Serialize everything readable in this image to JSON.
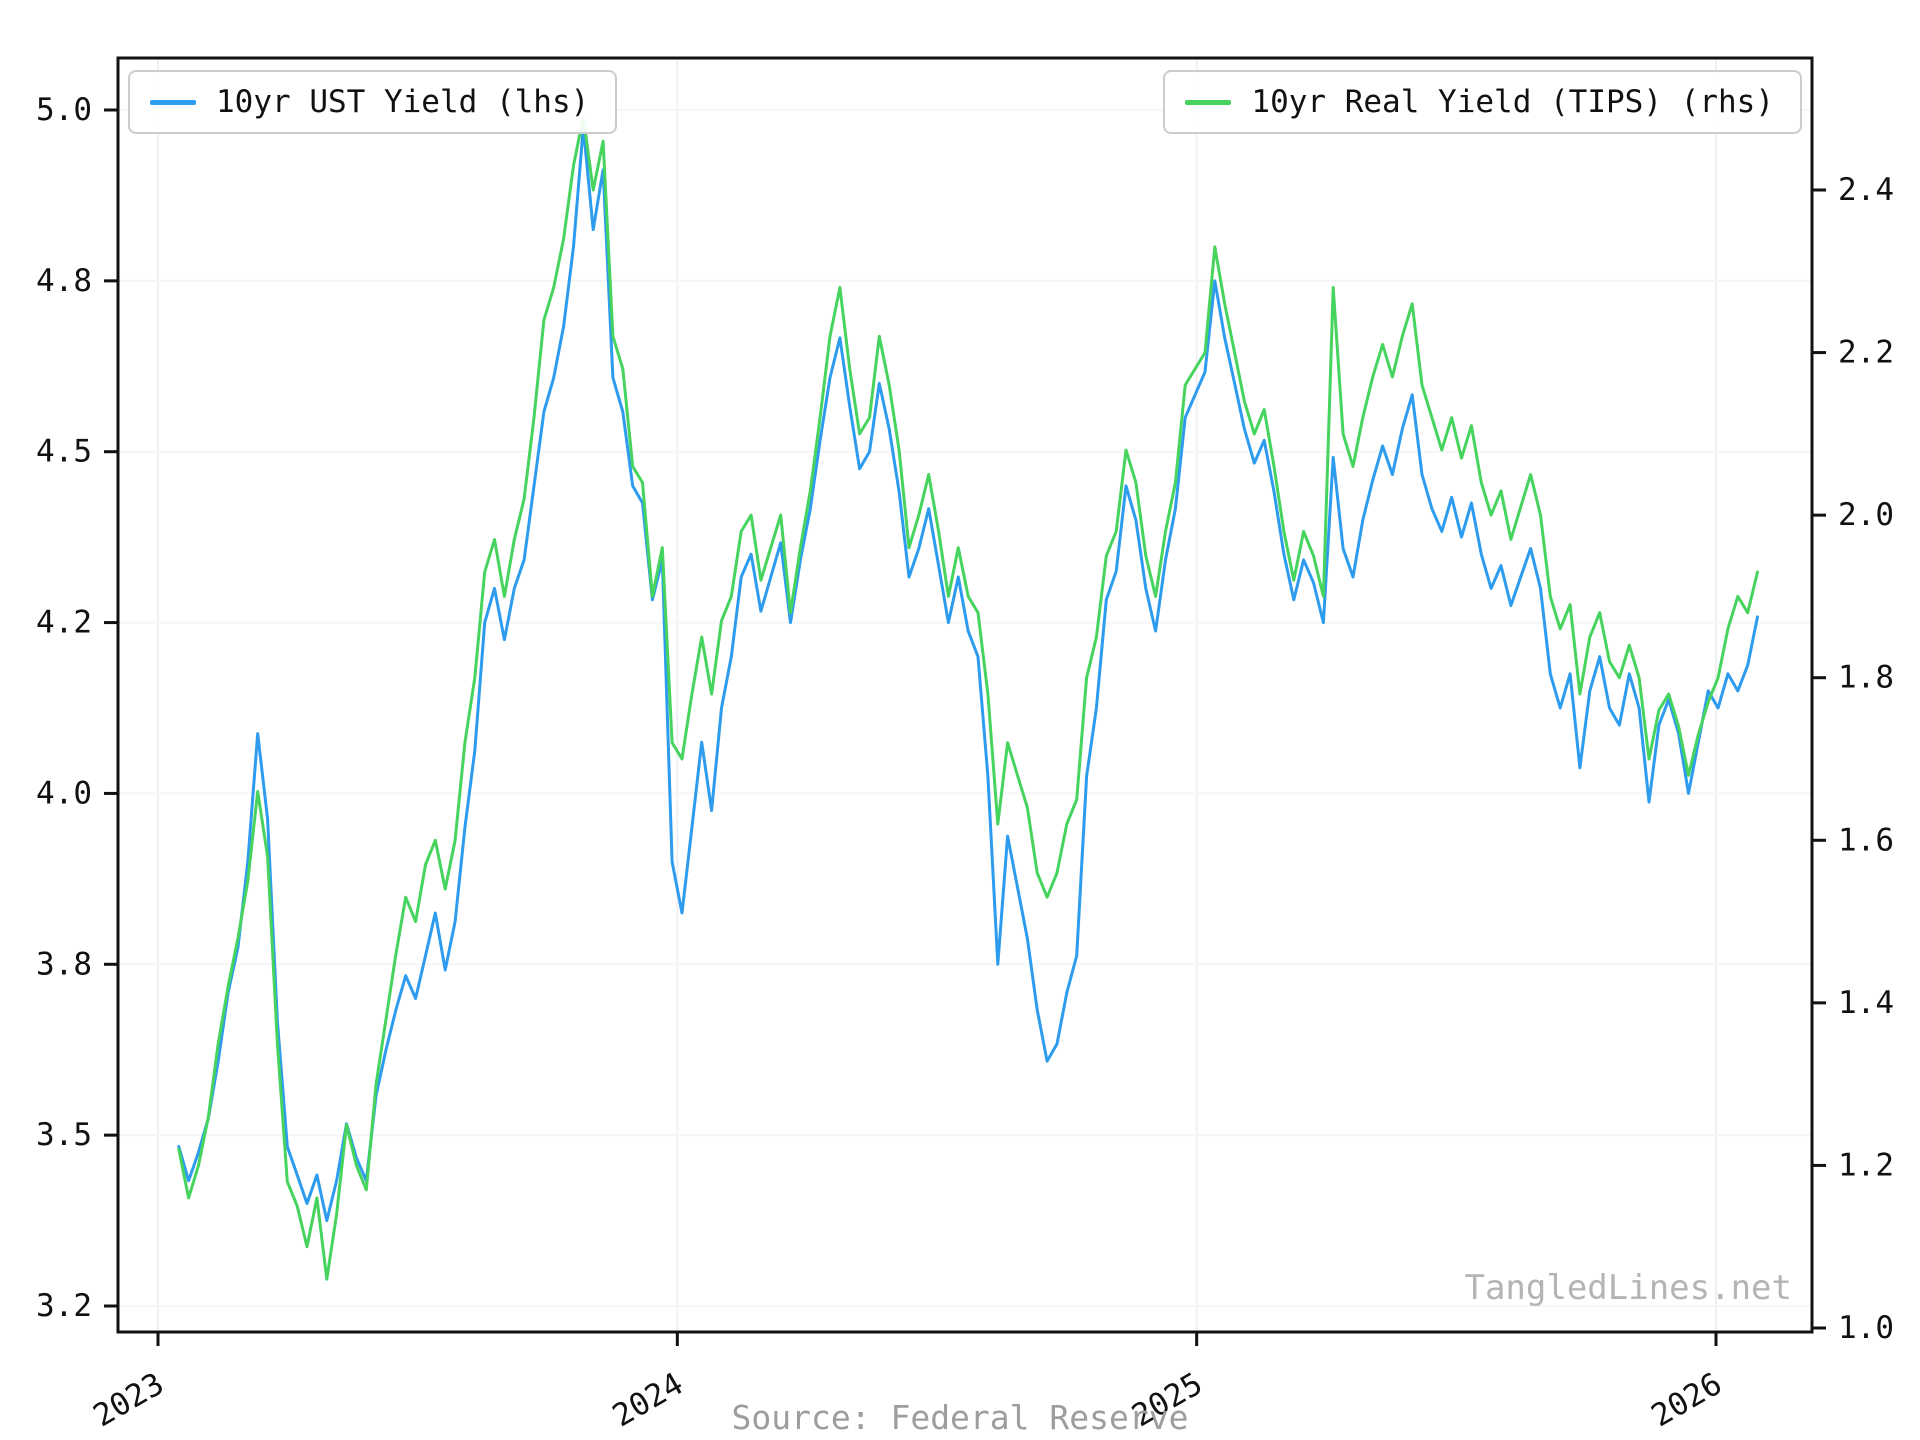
{
  "watermark": "TangledLines.net",
  "source": "Source: Federal Reserve",
  "legend": {
    "left": {
      "label": "10yr UST Yield (lhs)",
      "color": "#2d9cee"
    },
    "right": {
      "label": "10yr Real Yield (TIPS) (rhs)",
      "color": "#46d35e"
    }
  },
  "chart_data": {
    "type": "line",
    "title": "",
    "xlabel": "",
    "x_axis": {
      "ticks": [
        2023,
        2024,
        2025,
        2026
      ],
      "labels": [
        "2023",
        "2024",
        "2025",
        "2026"
      ],
      "range": [
        2022.92,
        2026.19
      ]
    },
    "left_axis": {
      "label": "10yr UST Yield",
      "ticks": [
        3.2,
        3.5,
        3.8,
        4.0,
        4.2,
        4.5,
        4.8,
        5.0
      ],
      "labels": [
        "3.2",
        "3.5",
        "3.8",
        "4.0",
        "4.2",
        "4.5",
        "4.8",
        "5.0"
      ],
      "tick_spacing": "uniform"
    },
    "right_axis": {
      "label": "10yr Real Yield (TIPS)",
      "ticks": [
        1.0,
        1.2,
        1.4,
        1.6,
        1.8,
        2.0,
        2.2,
        2.4
      ],
      "labels": [
        "1.0",
        "1.2",
        "1.4",
        "1.6",
        "1.8",
        "2.0",
        "2.2",
        "2.4"
      ],
      "tick_spacing": "uniform"
    },
    "grid": true,
    "legend_position": [
      "upper left",
      "upper right"
    ],
    "x": [
      2023.04,
      2023.059,
      2023.078,
      2023.097,
      2023.116,
      2023.135,
      2023.154,
      2023.173,
      2023.192,
      2023.211,
      2023.23,
      2023.249,
      2023.268,
      2023.287,
      2023.306,
      2023.325,
      2023.344,
      2023.363,
      2023.382,
      2023.401,
      2023.42,
      2023.439,
      2023.458,
      2023.477,
      2023.496,
      2023.515,
      2023.534,
      2023.553,
      2023.572,
      2023.591,
      2023.61,
      2023.629,
      2023.648,
      2023.667,
      2023.686,
      2023.705,
      2023.724,
      2023.743,
      2023.762,
      2023.781,
      2023.8,
      2023.819,
      2023.838,
      2023.857,
      2023.876,
      2023.895,
      2023.914,
      2023.933,
      2023.952,
      2023.971,
      2023.99,
      2024.009,
      2024.028,
      2024.047,
      2024.066,
      2024.085,
      2024.104,
      2024.123,
      2024.142,
      2024.161,
      2024.18,
      2024.199,
      2024.218,
      2024.237,
      2024.256,
      2024.275,
      2024.294,
      2024.313,
      2024.332,
      2024.351,
      2024.37,
      2024.389,
      2024.408,
      2024.427,
      2024.446,
      2024.465,
      2024.484,
      2024.503,
      2024.522,
      2024.541,
      2024.56,
      2024.579,
      2024.598,
      2024.617,
      2024.636,
      2024.655,
      2024.674,
      2024.693,
      2024.712,
      2024.731,
      2024.75,
      2024.769,
      2024.788,
      2024.807,
      2024.826,
      2024.845,
      2024.864,
      2024.883,
      2024.902,
      2024.921,
      2024.94,
      2024.959,
      2024.978,
      2024.997,
      2025.016,
      2025.035,
      2025.054,
      2025.073,
      2025.092,
      2025.111,
      2025.13,
      2025.149,
      2025.168,
      2025.187,
      2025.206,
      2025.225,
      2025.244,
      2025.263,
      2025.282,
      2025.301,
      2025.32,
      2025.339,
      2025.358,
      2025.377,
      2025.396,
      2025.415,
      2025.434,
      2025.453,
      2025.472,
      2025.491,
      2025.51,
      2025.529,
      2025.548,
      2025.567,
      2025.586,
      2025.605,
      2025.624,
      2025.643,
      2025.662,
      2025.681,
      2025.7,
      2025.719,
      2025.738,
      2025.757,
      2025.776,
      2025.795,
      2025.814,
      2025.833,
      2025.852,
      2025.871,
      2025.89,
      2025.909,
      2025.928,
      2025.947,
      2025.966,
      2025.985,
      2026.004,
      2026.023,
      2026.042,
      2026.061,
      2026.08
    ],
    "series": [
      {
        "name": "10yr UST Yield (lhs)",
        "axis": "left",
        "color": "#2d9cee",
        "values": [
          3.48,
          3.42,
          3.47,
          3.53,
          3.63,
          3.75,
          3.82,
          3.92,
          4.07,
          3.97,
          3.7,
          3.48,
          3.43,
          3.38,
          3.43,
          3.35,
          3.42,
          3.52,
          3.46,
          3.42,
          3.57,
          3.65,
          3.72,
          3.78,
          3.74,
          3.81,
          3.86,
          3.79,
          3.85,
          3.96,
          4.05,
          4.2,
          4.26,
          4.18,
          4.26,
          4.31,
          4.44,
          4.57,
          4.63,
          4.72,
          4.84,
          4.98,
          4.86,
          4.93,
          4.63,
          4.57,
          4.44,
          4.41,
          4.24,
          4.31,
          3.92,
          3.86,
          3.96,
          4.06,
          3.98,
          4.1,
          4.16,
          4.28,
          4.32,
          4.22,
          4.28,
          4.34,
          4.2,
          4.31,
          4.4,
          4.52,
          4.63,
          4.7,
          4.58,
          4.47,
          4.5,
          4.62,
          4.54,
          4.43,
          4.28,
          4.33,
          4.4,
          4.3,
          4.2,
          4.28,
          4.19,
          4.16,
          4.02,
          3.8,
          3.95,
          3.89,
          3.83,
          3.72,
          3.63,
          3.66,
          3.75,
          3.81,
          4.02,
          4.1,
          4.24,
          4.29,
          4.44,
          4.38,
          4.26,
          4.19,
          4.31,
          4.4,
          4.56,
          4.6,
          4.64,
          4.8,
          4.7,
          4.62,
          4.54,
          4.48,
          4.52,
          4.43,
          4.32,
          4.24,
          4.31,
          4.27,
          4.2,
          4.49,
          4.33,
          4.28,
          4.38,
          4.45,
          4.51,
          4.46,
          4.54,
          4.6,
          4.46,
          4.4,
          4.36,
          4.42,
          4.35,
          4.41,
          4.32,
          4.26,
          4.3,
          4.23,
          4.28,
          4.33,
          4.26,
          4.14,
          4.1,
          4.14,
          4.03,
          4.12,
          4.16,
          4.1,
          4.08,
          4.14,
          4.1,
          3.99,
          4.08,
          4.11,
          4.07,
          4.0,
          4.06,
          4.12,
          4.1,
          4.14,
          4.12,
          4.15,
          4.21
        ]
      },
      {
        "name": "10yr Real Yield (TIPS) (rhs)",
        "axis": "right",
        "color": "#46d35e",
        "values": [
          1.22,
          1.16,
          1.2,
          1.26,
          1.35,
          1.42,
          1.48,
          1.55,
          1.66,
          1.58,
          1.35,
          1.18,
          1.15,
          1.1,
          1.16,
          1.06,
          1.14,
          1.25,
          1.2,
          1.17,
          1.3,
          1.38,
          1.46,
          1.53,
          1.5,
          1.57,
          1.6,
          1.54,
          1.6,
          1.72,
          1.8,
          1.93,
          1.97,
          1.9,
          1.97,
          2.02,
          2.12,
          2.24,
          2.28,
          2.34,
          2.43,
          2.49,
          2.4,
          2.46,
          2.22,
          2.18,
          2.06,
          2.04,
          1.9,
          1.96,
          1.72,
          1.7,
          1.78,
          1.85,
          1.78,
          1.87,
          1.9,
          1.98,
          2.0,
          1.92,
          1.96,
          2.0,
          1.88,
          1.96,
          2.03,
          2.12,
          2.22,
          2.28,
          2.18,
          2.1,
          2.12,
          2.22,
          2.16,
          2.08,
          1.96,
          2.0,
          2.05,
          1.98,
          1.9,
          1.96,
          1.9,
          1.88,
          1.78,
          1.62,
          1.72,
          1.68,
          1.64,
          1.56,
          1.53,
          1.56,
          1.62,
          1.65,
          1.8,
          1.85,
          1.95,
          1.98,
          2.08,
          2.04,
          1.95,
          1.9,
          1.98,
          2.04,
          2.16,
          2.18,
          2.2,
          2.33,
          2.26,
          2.2,
          2.14,
          2.1,
          2.13,
          2.06,
          1.98,
          1.92,
          1.98,
          1.95,
          1.9,
          2.28,
          2.1,
          2.06,
          2.12,
          2.17,
          2.21,
          2.17,
          2.22,
          2.26,
          2.16,
          2.12,
          2.08,
          2.12,
          2.07,
          2.11,
          2.04,
          2.0,
          2.03,
          1.97,
          2.01,
          2.05,
          2.0,
          1.9,
          1.86,
          1.89,
          1.78,
          1.85,
          1.88,
          1.82,
          1.8,
          1.84,
          1.8,
          1.7,
          1.76,
          1.78,
          1.74,
          1.68,
          1.73,
          1.77,
          1.8,
          1.86,
          1.9,
          1.88,
          1.93
        ]
      }
    ]
  }
}
